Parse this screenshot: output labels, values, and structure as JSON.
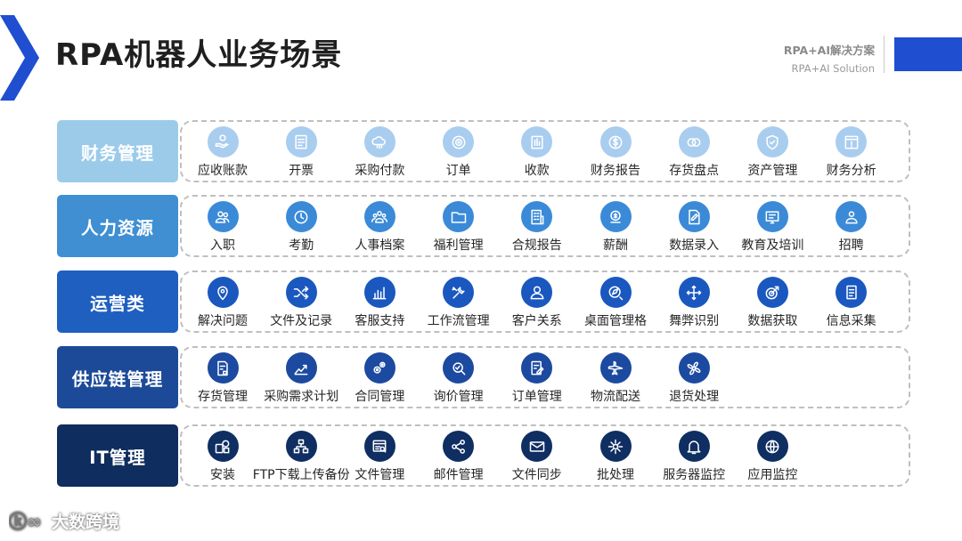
{
  "header": {
    "title": "RPA机器人业务场景",
    "brand_cn": "RPA+AI解决方案",
    "brand_en": "RPA+AI Solution",
    "accent_color": "#1f4fd0"
  },
  "watermark": {
    "text": "大数跨境"
  },
  "rows": [
    {
      "category": "财务管理",
      "color": "#9ccbea",
      "icon_color": "#a9cdef",
      "items": [
        {
          "label": "应收账款",
          "icon": "hand-coin-icon"
        },
        {
          "label": "开票",
          "icon": "invoice-icon"
        },
        {
          "label": "采购付款",
          "icon": "cloud-payment-icon"
        },
        {
          "label": "订单",
          "icon": "target-icon"
        },
        {
          "label": "收款",
          "icon": "receipt-icon"
        },
        {
          "label": "财务报告",
          "icon": "dollar-coin-icon"
        },
        {
          "label": "存货盘点",
          "icon": "rings-icon"
        },
        {
          "label": "资产管理",
          "icon": "shield-check-icon"
        },
        {
          "label": "财务分析",
          "icon": "report-icon"
        }
      ]
    },
    {
      "category": "人力资源",
      "color": "#3f8fd2",
      "icon_color": "#3b8ad8",
      "items": [
        {
          "label": "入职",
          "icon": "users-icon"
        },
        {
          "label": "考勤",
          "icon": "clock-icon"
        },
        {
          "label": "人事档案",
          "icon": "team-icon"
        },
        {
          "label": "福利管理",
          "icon": "folder-icon"
        },
        {
          "label": "合规报告",
          "icon": "building-icon"
        },
        {
          "label": "薪酬",
          "icon": "money-icon"
        },
        {
          "label": "数据录入",
          "icon": "edit-doc-icon"
        },
        {
          "label": "教育及培训",
          "icon": "training-icon"
        },
        {
          "label": "招聘",
          "icon": "recruit-icon"
        }
      ]
    },
    {
      "category": "运营类",
      "color": "#1e5fc0",
      "icon_color": "#1a58c0",
      "items": [
        {
          "label": "解决问题",
          "icon": "location-pin-icon"
        },
        {
          "label": "文件及记录",
          "icon": "shuffle-icon"
        },
        {
          "label": "客服支持",
          "icon": "bar-chart-icon"
        },
        {
          "label": "工作流管理",
          "icon": "tools-icon"
        },
        {
          "label": "客户关系",
          "icon": "person-icon"
        },
        {
          "label": "桌面管理格",
          "icon": "compass-icon"
        },
        {
          "label": "舞弊识别",
          "icon": "move-icon"
        },
        {
          "label": "数据获取",
          "icon": "target-arrow-icon"
        },
        {
          "label": "信息采集",
          "icon": "document-icon"
        }
      ]
    },
    {
      "category": "供应链管理",
      "color": "#1d4a98",
      "icon_color": "#1c4aa0",
      "items": [
        {
          "label": "存货管理",
          "icon": "inventory-icon"
        },
        {
          "label": "采购需求计划",
          "icon": "trend-up-icon"
        },
        {
          "label": "合同管理",
          "icon": "gears-icon"
        },
        {
          "label": "询价管理",
          "icon": "search-icon"
        },
        {
          "label": "订单管理",
          "icon": "order-edit-icon"
        },
        {
          "label": "物流配送",
          "icon": "airplane-icon"
        },
        {
          "label": "退货处理",
          "icon": "fan-icon"
        }
      ]
    },
    {
      "category": "IT管理",
      "color": "#0f2d5e",
      "icon_color": "#0f2e62",
      "items": [
        {
          "label": "安装",
          "icon": "install-icon"
        },
        {
          "label": "FTP下载上传备份",
          "icon": "network-icon"
        },
        {
          "label": "文件管理",
          "icon": "file-search-icon"
        },
        {
          "label": "邮件管理",
          "icon": "share-icon"
        },
        {
          "label": "文件同步",
          "icon": "mail-icon"
        },
        {
          "label": "批处理",
          "icon": "batch-icon"
        },
        {
          "label": "服务器监控",
          "icon": "bell-icon"
        },
        {
          "label": "应用监控",
          "icon": "globe-icon"
        }
      ]
    }
  ]
}
